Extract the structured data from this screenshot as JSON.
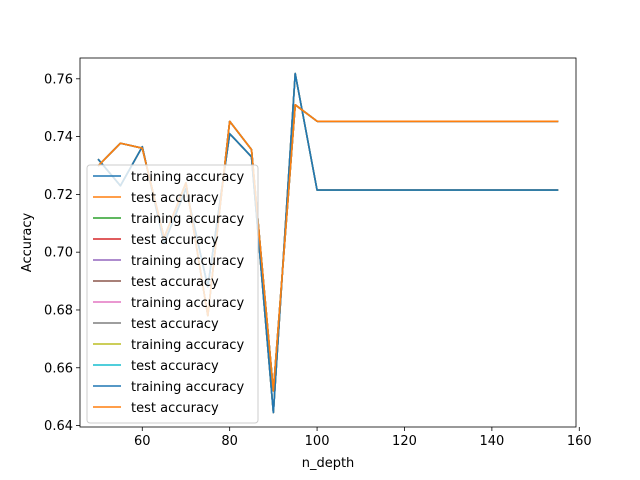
{
  "chart_data": {
    "type": "line",
    "xlabel": "n_depth",
    "ylabel": "Accuracy",
    "xlim": [
      45.75,
      159.25
    ],
    "ylim": [
      0.6395,
      0.7672
    ],
    "xticks": [
      60,
      80,
      100,
      120,
      140,
      160
    ],
    "yticks": [
      0.64,
      0.66,
      0.68,
      0.7,
      0.72,
      0.74,
      0.76
    ],
    "ytick_labels": [
      "0.64",
      "0.66",
      "0.68",
      "0.70",
      "0.72",
      "0.74",
      "0.76"
    ],
    "grid": false,
    "legend_position": "lower-left",
    "x": [
      50,
      55,
      60,
      65,
      70,
      75,
      80,
      85,
      90,
      95,
      100,
      105,
      110,
      115,
      120,
      125,
      130,
      135,
      140,
      145,
      150,
      155
    ],
    "series": [
      {
        "name": "training accuracy",
        "color": "#1f77b4",
        "values": [
          0.732,
          0.723,
          0.7365,
          0.703,
          0.722,
          0.688,
          0.741,
          0.733,
          0.6445,
          0.7618,
          0.7215,
          0.7215,
          0.7215,
          0.7215,
          0.7215,
          0.7215,
          0.7215,
          0.7215,
          0.7215,
          0.7215,
          0.7215,
          0.7215
        ]
      },
      {
        "name": "test accuracy",
        "color": "#ff7f0e",
        "values": [
          0.73,
          0.7377,
          0.736,
          0.705,
          0.724,
          0.678,
          0.7453,
          0.7355,
          0.652,
          0.751,
          0.7453,
          0.7453,
          0.7453,
          0.7453,
          0.7453,
          0.7453,
          0.7453,
          0.7453,
          0.7453,
          0.7453,
          0.7453,
          0.7453
        ]
      },
      {
        "name": "training accuracy",
        "color": "#2ca02c",
        "values": [
          0.732,
          0.723,
          0.7365,
          0.703,
          0.722,
          0.688,
          0.741,
          0.733,
          0.6445,
          0.7618,
          0.7215,
          0.7215,
          0.7215,
          0.7215,
          0.7215,
          0.7215,
          0.7215,
          0.7215,
          0.7215,
          0.7215,
          0.7215,
          0.7215
        ]
      },
      {
        "name": "test accuracy",
        "color": "#d62728",
        "values": [
          0.73,
          0.7377,
          0.736,
          0.705,
          0.724,
          0.678,
          0.7453,
          0.7355,
          0.652,
          0.751,
          0.7453,
          0.7453,
          0.7453,
          0.7453,
          0.7453,
          0.7453,
          0.7453,
          0.7453,
          0.7453,
          0.7453,
          0.7453,
          0.7453
        ]
      },
      {
        "name": "training accuracy",
        "color": "#9467bd",
        "values": [
          0.732,
          0.723,
          0.7365,
          0.703,
          0.722,
          0.688,
          0.741,
          0.733,
          0.6445,
          0.7618,
          0.7215,
          0.7215,
          0.7215,
          0.7215,
          0.7215,
          0.7215,
          0.7215,
          0.7215,
          0.7215,
          0.7215,
          0.7215,
          0.7215
        ]
      },
      {
        "name": "test accuracy",
        "color": "#8c564b",
        "values": [
          0.73,
          0.7377,
          0.736,
          0.705,
          0.724,
          0.678,
          0.7453,
          0.7355,
          0.652,
          0.751,
          0.7453,
          0.7453,
          0.7453,
          0.7453,
          0.7453,
          0.7453,
          0.7453,
          0.7453,
          0.7453,
          0.7453,
          0.7453,
          0.7453
        ]
      },
      {
        "name": "training accuracy",
        "color": "#e377c2",
        "values": [
          0.732,
          0.723,
          0.7365,
          0.703,
          0.722,
          0.688,
          0.741,
          0.733,
          0.6445,
          0.7618,
          0.7215,
          0.7215,
          0.7215,
          0.7215,
          0.7215,
          0.7215,
          0.7215,
          0.7215,
          0.7215,
          0.7215,
          0.7215,
          0.7215
        ]
      },
      {
        "name": "test accuracy",
        "color": "#7f7f7f",
        "values": [
          0.73,
          0.7377,
          0.736,
          0.705,
          0.724,
          0.678,
          0.7453,
          0.7355,
          0.652,
          0.751,
          0.7453,
          0.7453,
          0.7453,
          0.7453,
          0.7453,
          0.7453,
          0.7453,
          0.7453,
          0.7453,
          0.7453,
          0.7453,
          0.7453
        ]
      },
      {
        "name": "training accuracy",
        "color": "#bcbd22",
        "values": [
          0.732,
          0.723,
          0.7365,
          0.703,
          0.722,
          0.688,
          0.741,
          0.733,
          0.6445,
          0.7618,
          0.7215,
          0.7215,
          0.7215,
          0.7215,
          0.7215,
          0.7215,
          0.7215,
          0.7215,
          0.7215,
          0.7215,
          0.7215,
          0.7215
        ]
      },
      {
        "name": "test accuracy",
        "color": "#17becf",
        "values": [
          0.73,
          0.7377,
          0.736,
          0.705,
          0.724,
          0.678,
          0.7453,
          0.7355,
          0.652,
          0.751,
          0.7453,
          0.7453,
          0.7453,
          0.7453,
          0.7453,
          0.7453,
          0.7453,
          0.7453,
          0.7453,
          0.7453,
          0.7453,
          0.7453
        ]
      },
      {
        "name": "training accuracy",
        "color": "#1f77b4",
        "values": [
          0.732,
          0.723,
          0.7365,
          0.703,
          0.722,
          0.688,
          0.741,
          0.733,
          0.6445,
          0.7618,
          0.7215,
          0.7215,
          0.7215,
          0.7215,
          0.7215,
          0.7215,
          0.7215,
          0.7215,
          0.7215,
          0.7215,
          0.7215,
          0.7215
        ]
      },
      {
        "name": "test accuracy",
        "color": "#ff7f0e",
        "values": [
          0.73,
          0.7377,
          0.736,
          0.705,
          0.724,
          0.678,
          0.7453,
          0.7355,
          0.652,
          0.751,
          0.7453,
          0.7453,
          0.7453,
          0.7453,
          0.7453,
          0.7453,
          0.7453,
          0.7453,
          0.7453,
          0.7453,
          0.7453,
          0.7453
        ]
      }
    ]
  }
}
